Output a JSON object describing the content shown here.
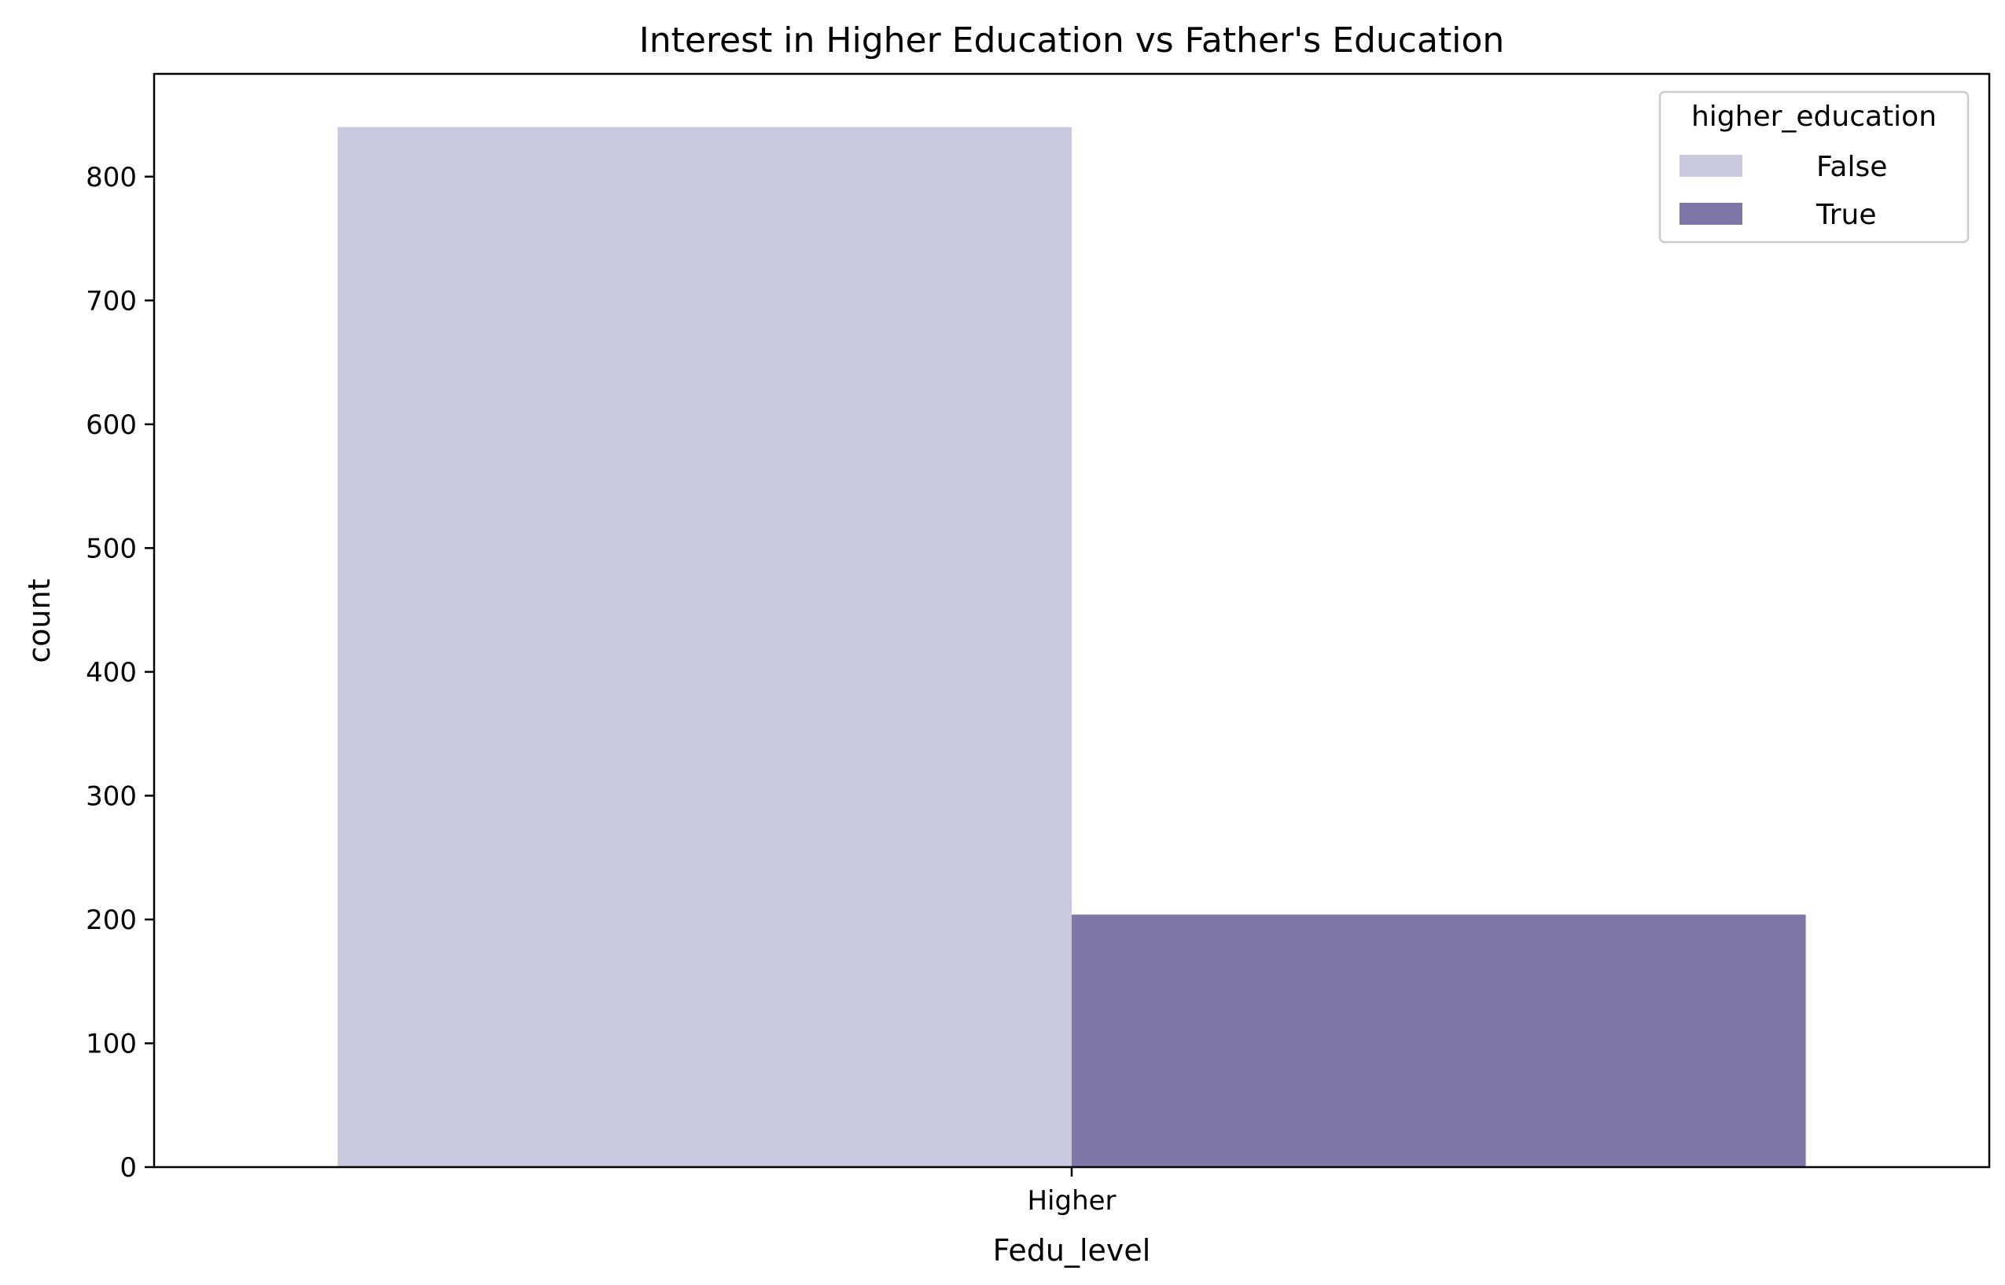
{
  "chart_data": {
    "type": "bar",
    "title": "Interest in Higher Education vs Father's Education",
    "xlabel": "Fedu_level",
    "ylabel": "count",
    "categories": [
      "Higher"
    ],
    "series": [
      {
        "name": "False",
        "color": "#c8c9df",
        "values": [
          840
        ]
      },
      {
        "name": "True",
        "color": "#8077a9",
        "values": [
          204
        ]
      }
    ],
    "ylim": [
      0,
      883
    ],
    "yticks": [
      0,
      100,
      200,
      300,
      400,
      500,
      600,
      700,
      800
    ],
    "grid": false,
    "legend": {
      "title": "higher_education",
      "placement": "top-right"
    }
  }
}
